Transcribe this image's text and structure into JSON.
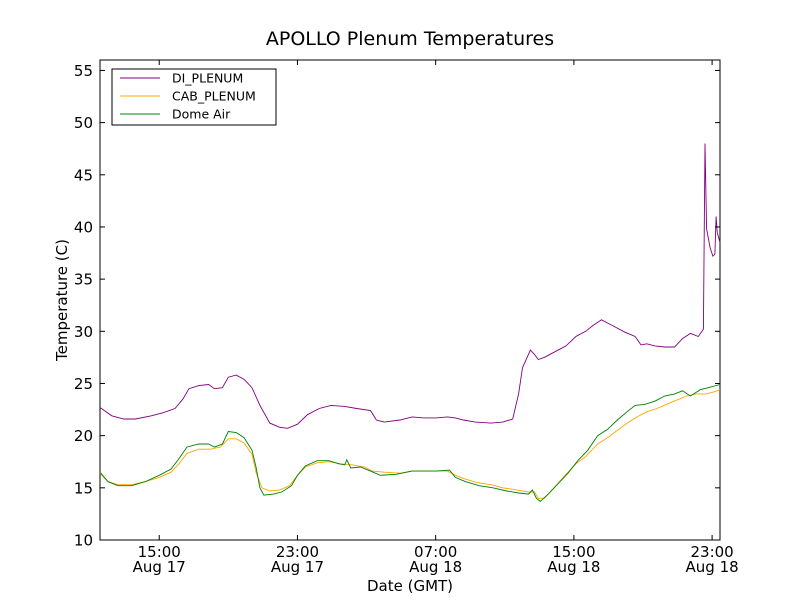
{
  "chart_data": {
    "type": "line",
    "title": "APOLLO Plenum Temperatures",
    "xlabel": "Date (GMT)",
    "ylabel": "Temperature (C)",
    "xlim": [
      9.0,
      24.7
    ],
    "ylim": [
      10,
      56
    ],
    "x_unit": "hours since 00:00 Aug 17 (GMT) plotted on the 8-hour tick grid; x is tick position in hours",
    "yticks": [
      10,
      15,
      20,
      25,
      30,
      35,
      40,
      45,
      50,
      55
    ],
    "xticks": [
      {
        "pos": 10.5,
        "time": "15:00",
        "date": "Aug 17"
      },
      {
        "pos": 14.0,
        "time": "23:00",
        "date": "Aug 17"
      },
      {
        "pos": 17.5,
        "time": "07:00",
        "date": "Aug 18"
      },
      {
        "pos": 21.0,
        "time": "15:00",
        "date": "Aug 18"
      },
      {
        "pos": 24.5,
        "time": "23:00",
        "date": "Aug 18"
      }
    ],
    "legend_position": "top-left",
    "series": [
      {
        "name": "DI_PLENUM",
        "color": "#800080",
        "points": [
          [
            9.0,
            22.7
          ],
          [
            9.3,
            21.9
          ],
          [
            9.6,
            21.6
          ],
          [
            9.9,
            21.6
          ],
          [
            10.3,
            21.9
          ],
          [
            10.6,
            22.2
          ],
          [
            10.9,
            22.6
          ],
          [
            11.1,
            23.5
          ],
          [
            11.25,
            24.5
          ],
          [
            11.5,
            24.8
          ],
          [
            11.75,
            24.9
          ],
          [
            11.9,
            24.5
          ],
          [
            12.1,
            24.6
          ],
          [
            12.25,
            25.6
          ],
          [
            12.45,
            25.8
          ],
          [
            12.65,
            25.4
          ],
          [
            12.85,
            24.6
          ],
          [
            13.05,
            22.9
          ],
          [
            13.3,
            21.2
          ],
          [
            13.55,
            20.8
          ],
          [
            13.75,
            20.7
          ],
          [
            14.0,
            21.1
          ],
          [
            14.25,
            22.0
          ],
          [
            14.55,
            22.6
          ],
          [
            14.85,
            22.9
          ],
          [
            15.2,
            22.8
          ],
          [
            15.5,
            22.6
          ],
          [
            15.85,
            22.4
          ],
          [
            16.0,
            21.5
          ],
          [
            16.2,
            21.3
          ],
          [
            16.6,
            21.5
          ],
          [
            16.9,
            21.8
          ],
          [
            17.2,
            21.7
          ],
          [
            17.5,
            21.7
          ],
          [
            17.8,
            21.8
          ],
          [
            18.0,
            21.7
          ],
          [
            18.2,
            21.5
          ],
          [
            18.5,
            21.3
          ],
          [
            18.9,
            21.2
          ],
          [
            19.2,
            21.3
          ],
          [
            19.45,
            21.6
          ],
          [
            19.6,
            24.0
          ],
          [
            19.7,
            26.5
          ],
          [
            19.9,
            28.2
          ],
          [
            20.0,
            27.8
          ],
          [
            20.1,
            27.3
          ],
          [
            20.25,
            27.5
          ],
          [
            20.5,
            28.0
          ],
          [
            20.8,
            28.6
          ],
          [
            21.05,
            29.5
          ],
          [
            21.3,
            30.0
          ],
          [
            21.5,
            30.6
          ],
          [
            21.7,
            31.1
          ],
          [
            21.85,
            30.8
          ],
          [
            22.05,
            30.4
          ],
          [
            22.3,
            29.9
          ],
          [
            22.55,
            29.5
          ],
          [
            22.7,
            28.7
          ],
          [
            22.85,
            28.8
          ],
          [
            23.05,
            28.6
          ],
          [
            23.3,
            28.5
          ],
          [
            23.55,
            28.5
          ],
          [
            23.75,
            29.3
          ],
          [
            23.95,
            29.8
          ],
          [
            24.15,
            29.5
          ],
          [
            24.28,
            30.2
          ],
          [
            24.32,
            48.0
          ],
          [
            24.36,
            39.8
          ],
          [
            24.45,
            38.0
          ],
          [
            24.52,
            37.2
          ],
          [
            24.57,
            37.4
          ],
          [
            24.6,
            41.0
          ],
          [
            24.63,
            39.5
          ],
          [
            24.7,
            38.5
          ]
        ]
      },
      {
        "name": "CAB_PLENUM",
        "color": "#ffa500",
        "points": [
          [
            9.0,
            16.4
          ],
          [
            9.2,
            15.6
          ],
          [
            9.45,
            15.3
          ],
          [
            9.8,
            15.3
          ],
          [
            10.15,
            15.6
          ],
          [
            10.5,
            16.0
          ],
          [
            10.8,
            16.5
          ],
          [
            11.0,
            17.3
          ],
          [
            11.2,
            18.3
          ],
          [
            11.5,
            18.7
          ],
          [
            11.8,
            18.7
          ],
          [
            12.05,
            18.9
          ],
          [
            12.25,
            19.7
          ],
          [
            12.45,
            19.7
          ],
          [
            12.65,
            19.3
          ],
          [
            12.85,
            18.2
          ],
          [
            12.95,
            16.5
          ],
          [
            13.1,
            15.0
          ],
          [
            13.3,
            14.7
          ],
          [
            13.55,
            14.8
          ],
          [
            13.8,
            15.2
          ],
          [
            14.0,
            16.2
          ],
          [
            14.2,
            17.0
          ],
          [
            14.5,
            17.4
          ],
          [
            14.8,
            17.5
          ],
          [
            15.1,
            17.3
          ],
          [
            15.4,
            17.2
          ],
          [
            15.7,
            17.0
          ],
          [
            15.9,
            16.6
          ],
          [
            16.2,
            16.5
          ],
          [
            16.6,
            16.4
          ],
          [
            16.9,
            16.6
          ],
          [
            17.2,
            16.6
          ],
          [
            17.5,
            16.6
          ],
          [
            17.8,
            16.6
          ],
          [
            18.0,
            16.2
          ],
          [
            18.2,
            15.9
          ],
          [
            18.55,
            15.5
          ],
          [
            18.9,
            15.3
          ],
          [
            19.2,
            15.0
          ],
          [
            19.55,
            14.8
          ],
          [
            19.85,
            14.6
          ],
          [
            20.0,
            14.6
          ],
          [
            20.1,
            14.0
          ],
          [
            20.25,
            14.0
          ],
          [
            20.5,
            15.0
          ],
          [
            20.8,
            16.3
          ],
          [
            21.05,
            17.3
          ],
          [
            21.3,
            18.0
          ],
          [
            21.6,
            19.2
          ],
          [
            21.85,
            19.8
          ],
          [
            22.1,
            20.5
          ],
          [
            22.35,
            21.2
          ],
          [
            22.6,
            21.8
          ],
          [
            22.85,
            22.3
          ],
          [
            23.1,
            22.6
          ],
          [
            23.35,
            23.0
          ],
          [
            23.6,
            23.4
          ],
          [
            23.85,
            23.8
          ],
          [
            24.1,
            24.0
          ],
          [
            24.35,
            24.0
          ],
          [
            24.55,
            24.2
          ],
          [
            24.7,
            24.4
          ]
        ]
      },
      {
        "name": "Dome Air",
        "color": "#008000",
        "points": [
          [
            9.0,
            16.5
          ],
          [
            9.2,
            15.6
          ],
          [
            9.45,
            15.2
          ],
          [
            9.8,
            15.2
          ],
          [
            10.15,
            15.6
          ],
          [
            10.5,
            16.2
          ],
          [
            10.8,
            16.8
          ],
          [
            11.0,
            17.8
          ],
          [
            11.2,
            18.9
          ],
          [
            11.5,
            19.2
          ],
          [
            11.75,
            19.2
          ],
          [
            11.9,
            18.9
          ],
          [
            12.1,
            19.2
          ],
          [
            12.25,
            20.4
          ],
          [
            12.45,
            20.3
          ],
          [
            12.65,
            19.8
          ],
          [
            12.85,
            18.6
          ],
          [
            12.95,
            17.0
          ],
          [
            13.05,
            15.0
          ],
          [
            13.15,
            14.3
          ],
          [
            13.4,
            14.4
          ],
          [
            13.6,
            14.6
          ],
          [
            13.85,
            15.2
          ],
          [
            14.0,
            16.2
          ],
          [
            14.2,
            17.1
          ],
          [
            14.5,
            17.6
          ],
          [
            14.8,
            17.6
          ],
          [
            15.05,
            17.3
          ],
          [
            15.2,
            17.2
          ],
          [
            15.25,
            17.7
          ],
          [
            15.35,
            16.9
          ],
          [
            15.6,
            17.0
          ],
          [
            15.85,
            16.6
          ],
          [
            16.1,
            16.2
          ],
          [
            16.5,
            16.3
          ],
          [
            16.9,
            16.6
          ],
          [
            17.2,
            16.6
          ],
          [
            17.5,
            16.6
          ],
          [
            17.85,
            16.7
          ],
          [
            18.0,
            16.0
          ],
          [
            18.25,
            15.6
          ],
          [
            18.6,
            15.2
          ],
          [
            18.95,
            15.0
          ],
          [
            19.3,
            14.7
          ],
          [
            19.6,
            14.5
          ],
          [
            19.85,
            14.4
          ],
          [
            19.95,
            14.8
          ],
          [
            20.05,
            14.0
          ],
          [
            20.15,
            13.7
          ],
          [
            20.35,
            14.4
          ],
          [
            20.6,
            15.4
          ],
          [
            20.85,
            16.4
          ],
          [
            21.1,
            17.6
          ],
          [
            21.35,
            18.6
          ],
          [
            21.6,
            20.0
          ],
          [
            21.85,
            20.6
          ],
          [
            22.1,
            21.5
          ],
          [
            22.35,
            22.3
          ],
          [
            22.55,
            22.9
          ],
          [
            22.8,
            23.0
          ],
          [
            23.05,
            23.3
          ],
          [
            23.3,
            23.8
          ],
          [
            23.55,
            24.0
          ],
          [
            23.75,
            24.3
          ],
          [
            23.95,
            23.8
          ],
          [
            24.2,
            24.4
          ],
          [
            24.4,
            24.6
          ],
          [
            24.7,
            24.9
          ]
        ]
      }
    ]
  }
}
